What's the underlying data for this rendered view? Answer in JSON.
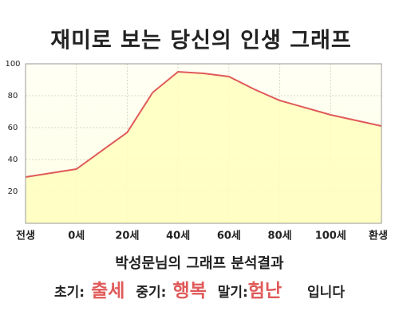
{
  "chart_data": {
    "type": "line",
    "title": "재미로 보는 당신의 인생 그래프",
    "x": [
      -20,
      0,
      20,
      30,
      40,
      50,
      60,
      70,
      80,
      100,
      120
    ],
    "series": [
      {
        "color": "#e05a5a",
        "fill": "#ffffbe",
        "values": [
          29,
          34,
          57,
          82,
          95,
          94,
          92,
          84,
          77,
          68,
          61
        ]
      }
    ],
    "xlim": [
      -20,
      120
    ],
    "xticks": [
      {
        "value": -20,
        "label": "전생"
      },
      {
        "value": 0,
        "label": "0세"
      },
      {
        "value": 20,
        "label": "20세"
      },
      {
        "value": 40,
        "label": "40세"
      },
      {
        "value": 60,
        "label": "60세"
      },
      {
        "value": 80,
        "label": "80세"
      },
      {
        "value": 100,
        "label": "100세"
      },
      {
        "value": 120,
        "label": "환생"
      }
    ],
    "ylim": [
      0,
      100
    ],
    "yticks": [
      20,
      40,
      60,
      80,
      100
    ],
    "grid": true
  },
  "summary": {
    "heading": "박성문님의 그래프 분석결과",
    "items": [
      {
        "label": "초기:",
        "value": "출세"
      },
      {
        "label": "중기:",
        "value": "행복"
      },
      {
        "label": "말기:",
        "value": "험난"
      }
    ],
    "ending": "입니다"
  }
}
